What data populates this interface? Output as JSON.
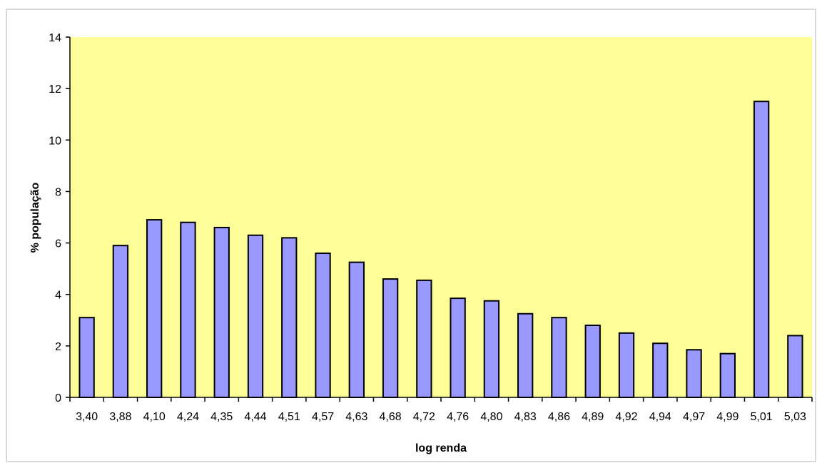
{
  "chart_data": {
    "type": "bar",
    "title": "",
    "xlabel": "log renda",
    "ylabel": "% população",
    "ylim": [
      0,
      14
    ],
    "yticks": [
      0,
      2,
      4,
      6,
      8,
      10,
      12,
      14
    ],
    "grid": false,
    "legend": "none",
    "colors": {
      "plot_background": "#ffff99",
      "bar_fill": "#9999ff",
      "bar_stroke": "#000000"
    },
    "categories": [
      "3,40",
      "3,88",
      "4,10",
      "4,24",
      "4,35",
      "4,44",
      "4,51",
      "4,57",
      "4,63",
      "4,68",
      "4,72",
      "4,76",
      "4,80",
      "4,83",
      "4,86",
      "4,89",
      "4,92",
      "4,94",
      "4,97",
      "4,99",
      "5,01",
      "5,03"
    ],
    "values": [
      3.1,
      5.9,
      6.9,
      6.8,
      6.6,
      6.3,
      6.2,
      5.6,
      5.25,
      4.6,
      4.55,
      3.85,
      3.75,
      3.25,
      3.1,
      2.8,
      2.5,
      2.1,
      1.85,
      1.7,
      11.5,
      2.4
    ]
  }
}
